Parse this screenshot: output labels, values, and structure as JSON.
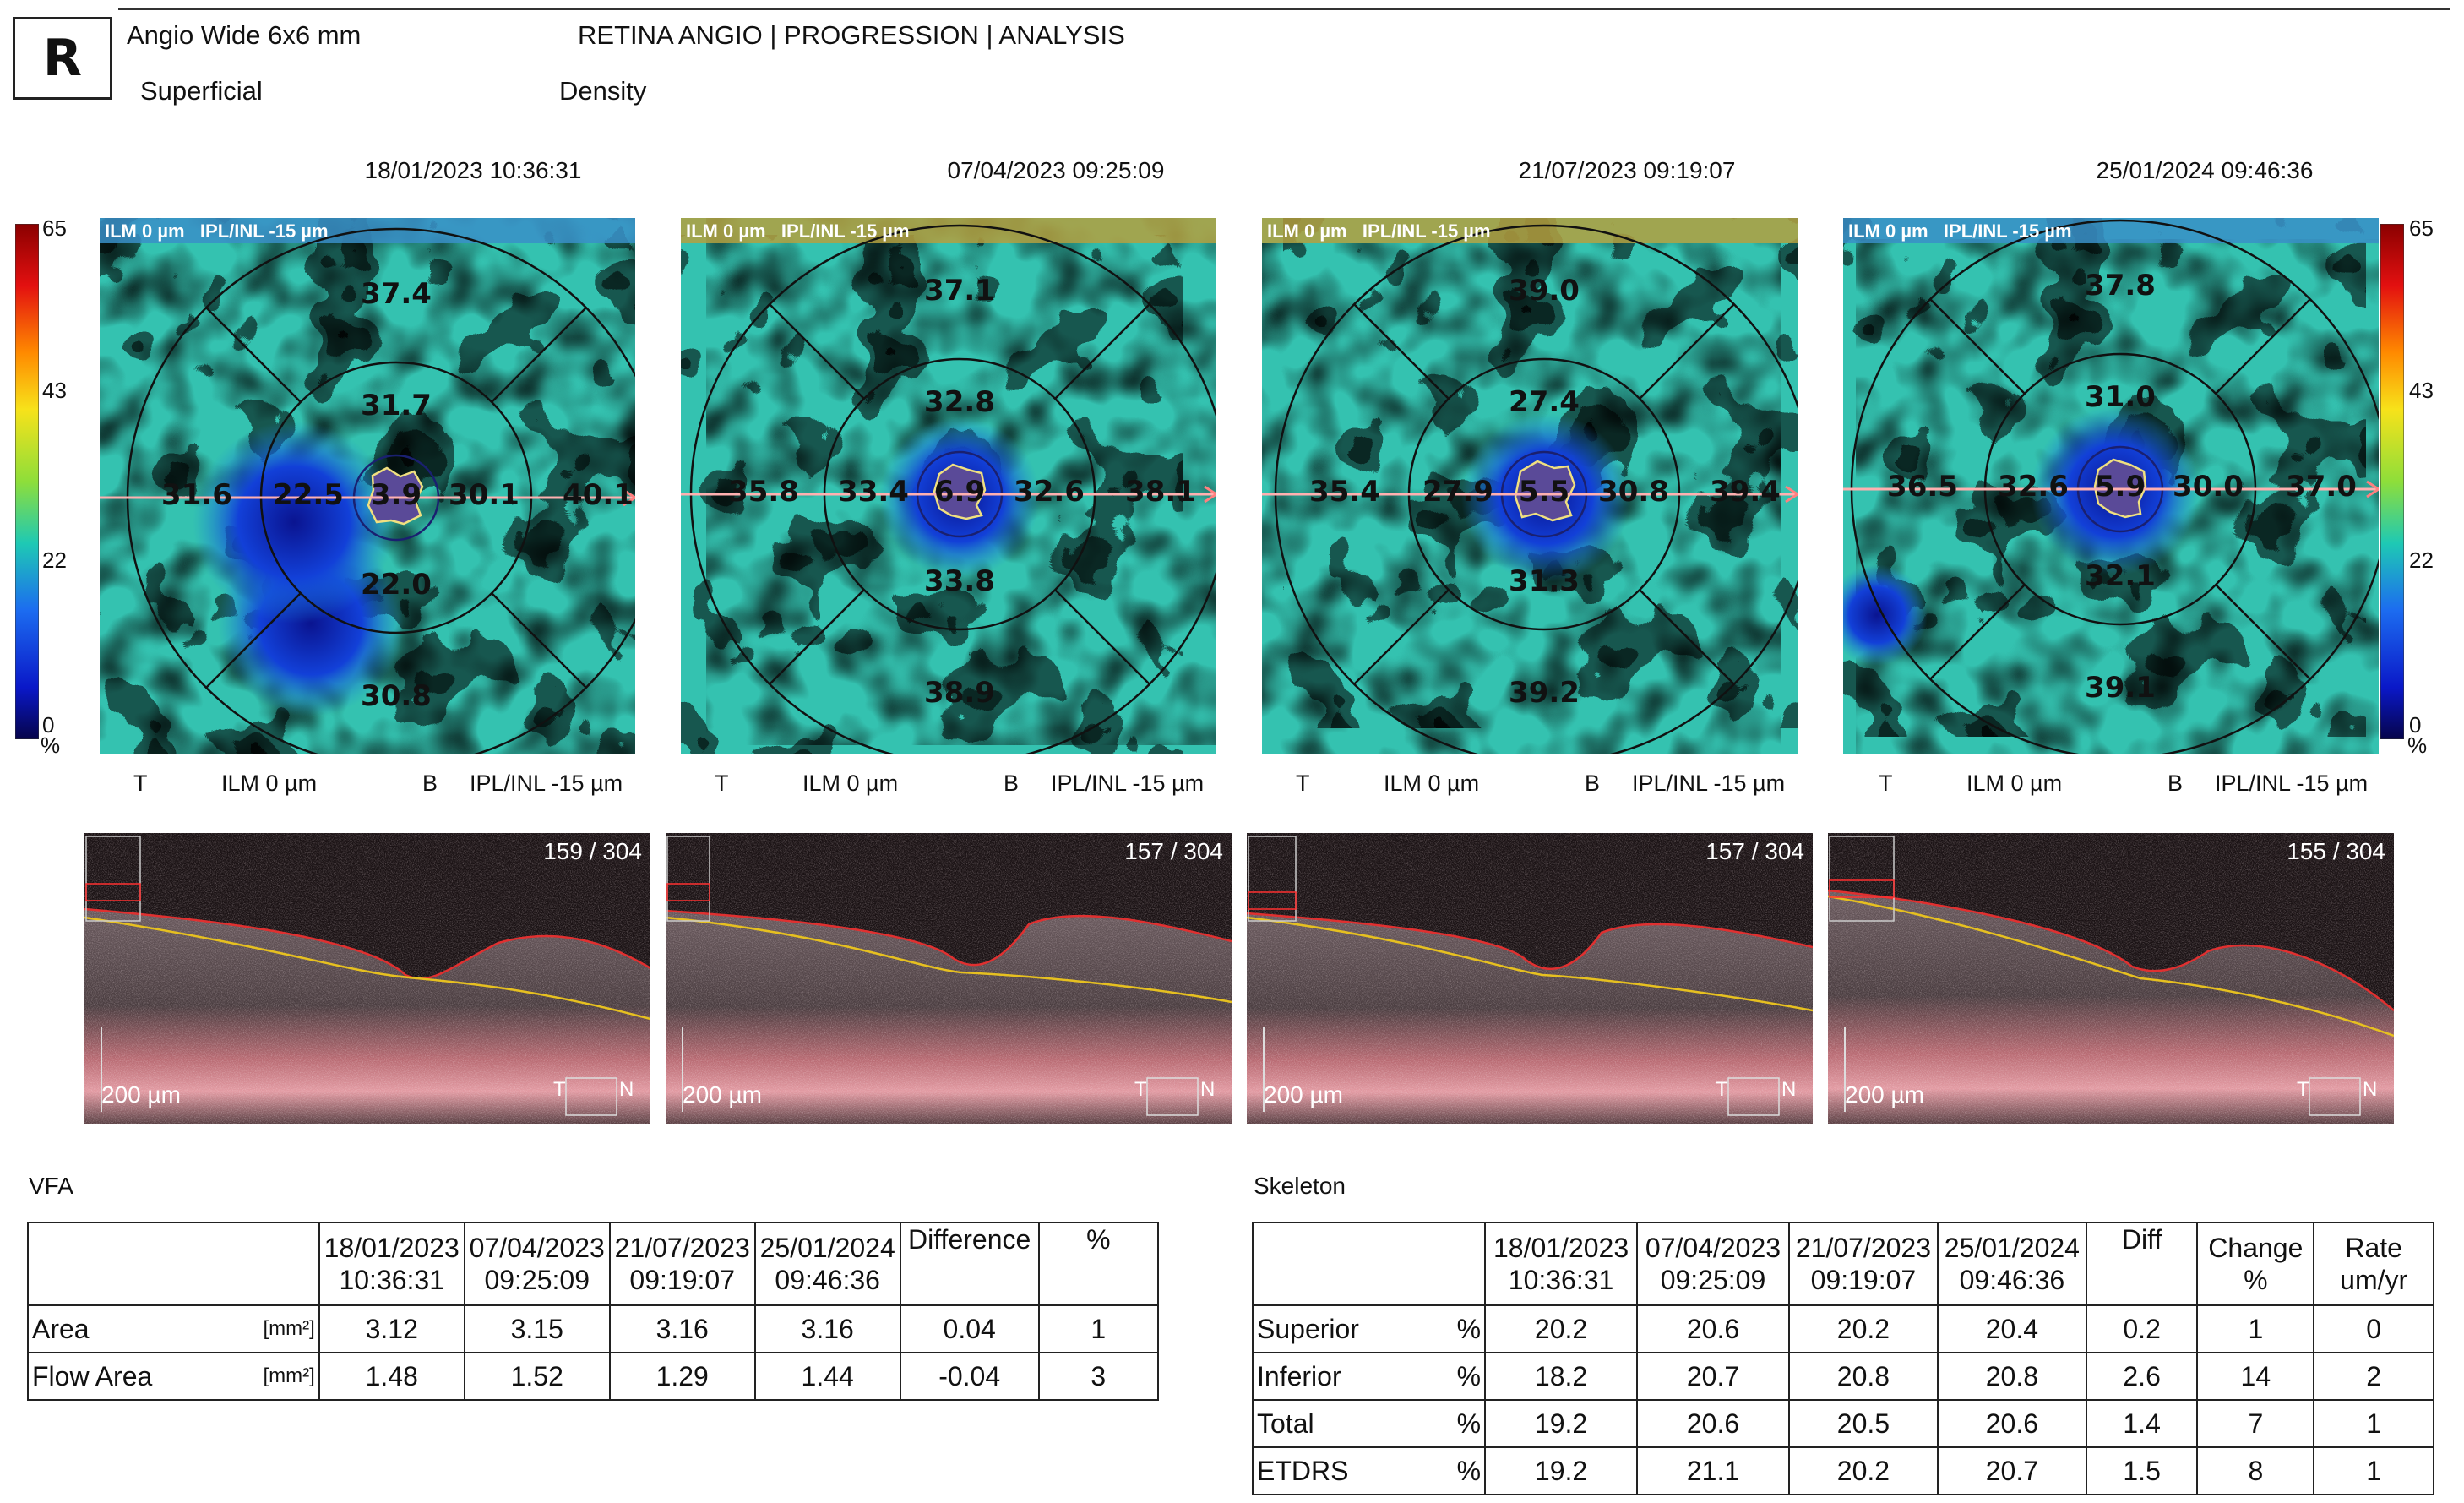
{
  "header": {
    "eye": "R",
    "scan_type": "Angio Wide  6x6 mm",
    "slab": "Superficial",
    "report_title": "RETINA ANGIO | PROGRESSION | ANALYSIS",
    "metric": "Density"
  },
  "colorbar": {
    "ticks": [
      "65",
      "43",
      "22",
      "0"
    ],
    "unit": "%"
  },
  "exams": [
    {
      "date": "18/01/2023 10:36:31",
      "overlay": "ILM 0 µm   IPL/INL -15 µm",
      "values": {
        "superior_outer": "37.4",
        "superior_inner": "31.7",
        "temporal_outer": "31.6",
        "temporal_inner": "22.5",
        "center": "3.9",
        "nasal_inner": "30.1",
        "nasal_outer": "40.1",
        "inferior_inner": "22.0",
        "inferior_outer": "30.8"
      },
      "footer": {
        "t": "T",
        "ilm": "ILM 0 µm",
        "b": "B",
        "ipl": "IPL/INL -15 µm"
      },
      "bscan": {
        "frame": "159 / 304",
        "scale": "200 µm",
        "t": "T",
        "n": "N"
      }
    },
    {
      "date": "07/04/2023 09:25:09",
      "overlay": "ILM 0 µm   IPL/INL -15 µm",
      "values": {
        "superior_outer": "37.1",
        "superior_inner": "32.8",
        "temporal_outer": "35.8",
        "temporal_inner": "33.4",
        "center": "6.9",
        "nasal_inner": "32.6",
        "nasal_outer": "38.1",
        "inferior_inner": "33.8",
        "inferior_outer": "38.9"
      },
      "footer": {
        "t": "T",
        "ilm": "ILM 0 µm",
        "b": "B",
        "ipl": "IPL/INL -15 µm"
      },
      "bscan": {
        "frame": "157 / 304",
        "scale": "200 µm",
        "t": "T",
        "n": "N"
      }
    },
    {
      "date": "21/07/2023 09:19:07",
      "overlay": "ILM 0 µm   IPL/INL -15 µm",
      "values": {
        "superior_outer": "39.0",
        "superior_inner": "27.4",
        "temporal_outer": "35.4",
        "temporal_inner": "27.9",
        "center": "5.5",
        "nasal_inner": "30.8",
        "nasal_outer": "39.4",
        "inferior_inner": "31.3",
        "inferior_outer": "39.2"
      },
      "footer": {
        "t": "T",
        "ilm": "ILM 0 µm",
        "b": "B",
        "ipl": "IPL/INL -15 µm"
      },
      "bscan": {
        "frame": "157 / 304",
        "scale": "200 µm",
        "t": "T",
        "n": "N"
      }
    },
    {
      "date": "25/01/2024 09:46:36",
      "overlay": "ILM 0 µm   IPL/INL -15 µm",
      "values": {
        "superior_outer": "37.8",
        "superior_inner": "31.0",
        "temporal_outer": "36.5",
        "temporal_inner": "32.6",
        "center": "5.9",
        "nasal_inner": "30.0",
        "nasal_outer": "37.0",
        "inferior_inner": "32.1",
        "inferior_outer": "39.1"
      },
      "footer": {
        "t": "T",
        "ilm": "ILM 0 µm",
        "b": "B",
        "ipl": "IPL/INL -15 µm"
      },
      "bscan": {
        "frame": "155 / 304",
        "scale": "200 µm",
        "t": "T",
        "n": "N"
      }
    }
  ],
  "vfa": {
    "title": "VFA",
    "headers": [
      {
        "l1": "18/01/2023",
        "l2": "10:36:31"
      },
      {
        "l1": "07/04/2023",
        "l2": "09:25:09"
      },
      {
        "l1": "21/07/2023",
        "l2": "09:19:07"
      },
      {
        "l1": "25/01/2024",
        "l2": "09:46:36"
      },
      {
        "l1": "Difference",
        "l2": ""
      },
      {
        "l1": "%",
        "l2": ""
      }
    ],
    "rows": [
      {
        "label": "Area",
        "unit": "[mm²]",
        "cells": [
          "3.12",
          "3.15",
          "3.16",
          "3.16",
          "0.04",
          "1"
        ]
      },
      {
        "label": "Flow Area",
        "unit": "[mm²]",
        "cells": [
          "1.48",
          "1.52",
          "1.29",
          "1.44",
          "-0.04",
          "3"
        ]
      }
    ]
  },
  "skeleton": {
    "title": "Skeleton",
    "headers": [
      {
        "l1": "18/01/2023",
        "l2": "10:36:31"
      },
      {
        "l1": "07/04/2023",
        "l2": "09:25:09"
      },
      {
        "l1": "21/07/2023",
        "l2": "09:19:07"
      },
      {
        "l1": "25/01/2024",
        "l2": "09:46:36"
      },
      {
        "l1": "Diff",
        "l2": ""
      },
      {
        "l1": "Change",
        "l2": "%"
      },
      {
        "l1": "Rate",
        "l2": "um/yr"
      }
    ],
    "rows": [
      {
        "label": "Superior",
        "unit": "%",
        "cells": [
          "20.2",
          "20.6",
          "20.2",
          "20.4",
          "0.2",
          "1",
          "0"
        ]
      },
      {
        "label": "Inferior",
        "unit": "%",
        "cells": [
          "18.2",
          "20.7",
          "20.8",
          "20.8",
          "2.6",
          "14",
          "2"
        ]
      },
      {
        "label": "Total",
        "unit": "%",
        "cells": [
          "19.2",
          "20.6",
          "20.5",
          "20.6",
          "1.4",
          "7",
          "1"
        ]
      },
      {
        "label": "ETDRS",
        "unit": "%",
        "cells": [
          "19.2",
          "21.1",
          "20.2",
          "20.7",
          "1.5",
          "8",
          "1"
        ]
      }
    ]
  }
}
